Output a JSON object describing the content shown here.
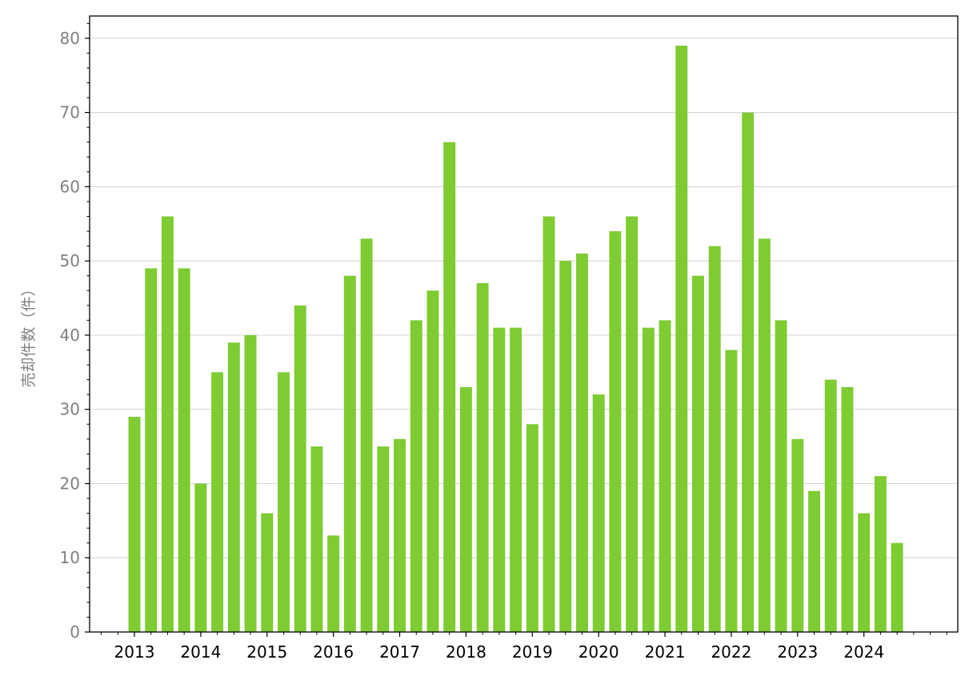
{
  "chart_data": {
    "type": "bar",
    "title": "",
    "xlabel": "",
    "ylabel": "売却件数（件）",
    "ylim": [
      0,
      83
    ],
    "yticks": [
      0,
      10,
      20,
      30,
      40,
      50,
      60,
      70,
      80
    ],
    "xtick_labels": [
      "2013",
      "2014",
      "2015",
      "2016",
      "2017",
      "2018",
      "2019",
      "2020",
      "2021",
      "2022",
      "2023",
      "2024"
    ],
    "x_unit": "quarter",
    "start": "2013 Q1",
    "categories": [
      "2013Q1",
      "2013Q2",
      "2013Q3",
      "2013Q4",
      "2014Q1",
      "2014Q2",
      "2014Q3",
      "2014Q4",
      "2015Q1",
      "2015Q2",
      "2015Q3",
      "2015Q4",
      "2016Q1",
      "2016Q2",
      "2016Q3",
      "2016Q4",
      "2017Q1",
      "2017Q2",
      "2017Q3",
      "2017Q4",
      "2018Q1",
      "2018Q2",
      "2018Q3",
      "2018Q4",
      "2019Q1",
      "2019Q2",
      "2019Q3",
      "2019Q4",
      "2020Q1",
      "2020Q2",
      "2020Q3",
      "2020Q4",
      "2021Q1",
      "2021Q2",
      "2021Q3",
      "2021Q4",
      "2022Q1",
      "2022Q2",
      "2022Q3",
      "2022Q4",
      "2023Q1",
      "2023Q2",
      "2023Q3",
      "2023Q4",
      "2024Q1",
      "2024Q2",
      "2024Q3"
    ],
    "values": [
      29,
      49,
      56,
      49,
      20,
      35,
      39,
      40,
      16,
      35,
      44,
      25,
      13,
      48,
      53,
      25,
      26,
      42,
      46,
      66,
      33,
      47,
      41,
      41,
      28,
      56,
      50,
      51,
      32,
      54,
      56,
      41,
      42,
      79,
      48,
      52,
      38,
      70,
      53,
      42,
      26,
      19,
      34,
      33,
      16,
      21,
      12
    ],
    "bar_color": "#7ecb32",
    "grid": "horizontal",
    "grid_color": "#d9d9d9"
  }
}
